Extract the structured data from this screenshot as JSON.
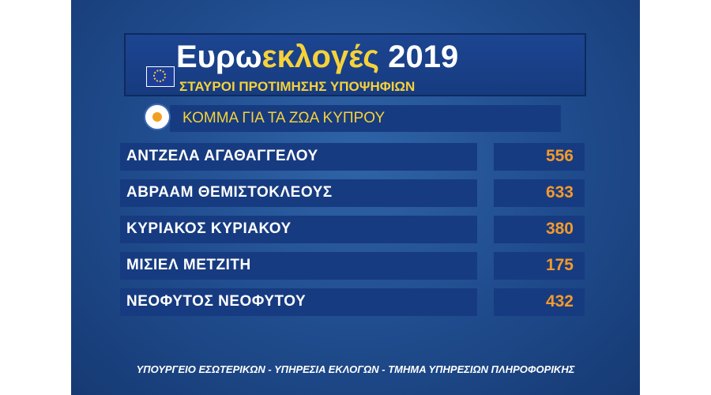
{
  "header": {
    "title": {
      "part1": "Ευρω",
      "part2": "εκλογές",
      "part3": "2019"
    },
    "subtitle": "ΣΤΑΥΡΟΙ ΠΡΟΤΙΜΗΣΗΣ ΥΠΟΨΗΦΙΩΝ"
  },
  "party": "ΚΟΜΜΑ ΓΙΑ ΤΑ ΖΩΑ ΚΥΠΡΟΥ",
  "table": {
    "rows": [
      {
        "name": "ΑΝΤΖΕΛΑ ΑΓΑΘΑΓΓΕΛΟΥ",
        "votes": 556
      },
      {
        "name": "ΑΒΡΑΑΜ ΘΕΜΙΣΤΟΚΛΕΟΥΣ",
        "votes": 633
      },
      {
        "name": "ΚΥΡΙΑΚΟΣ ΚΥΡΙΑΚΟΥ",
        "votes": 380
      },
      {
        "name": "ΜΙΣΙΕΛ ΜΕΤΖΙΤΗ",
        "votes": 175
      },
      {
        "name": "ΝΕΟΦΥΤΟΣ ΝΕΟΦΥΤΟΥ",
        "votes": 432
      }
    ]
  },
  "footer": "ΥΠΟΥΡΓΕΙΟ ΕΣΩΤΕΡΙΚΩΝ - ΥΠΗΡΕΣΙΑ ΕΚΛΟΓΩΝ - ΤΜΗΜΑ ΥΠΗΡΕΣΙΩΝ ΠΛΗΡΟΦΟΡΙΚΗΣ"
}
